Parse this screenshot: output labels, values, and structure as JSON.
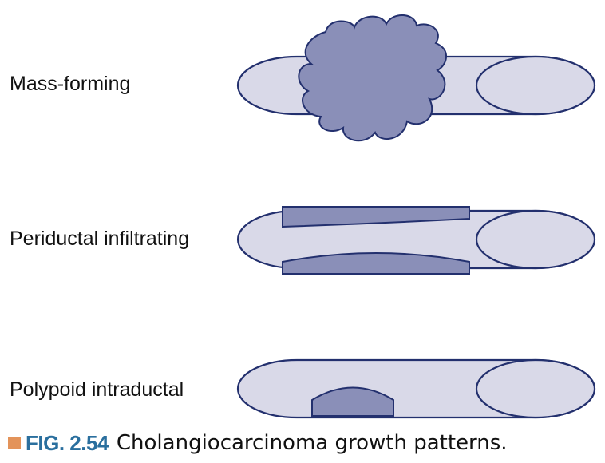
{
  "patterns": [
    {
      "label": "Mass-forming"
    },
    {
      "label": "Periductal infiltrating"
    },
    {
      "label": "Polypoid intraductal"
    }
  ],
  "caption": {
    "figure_number": "FIG. 2.54",
    "text": "Cholangiocarcinoma growth patterns."
  },
  "colors": {
    "duct_fill": "#d9d9e8",
    "duct_stroke": "#23306e",
    "tumor_fill": "#8a8fb8",
    "figno_color": "#2a6f9e",
    "marker_color": "#e3935a"
  }
}
